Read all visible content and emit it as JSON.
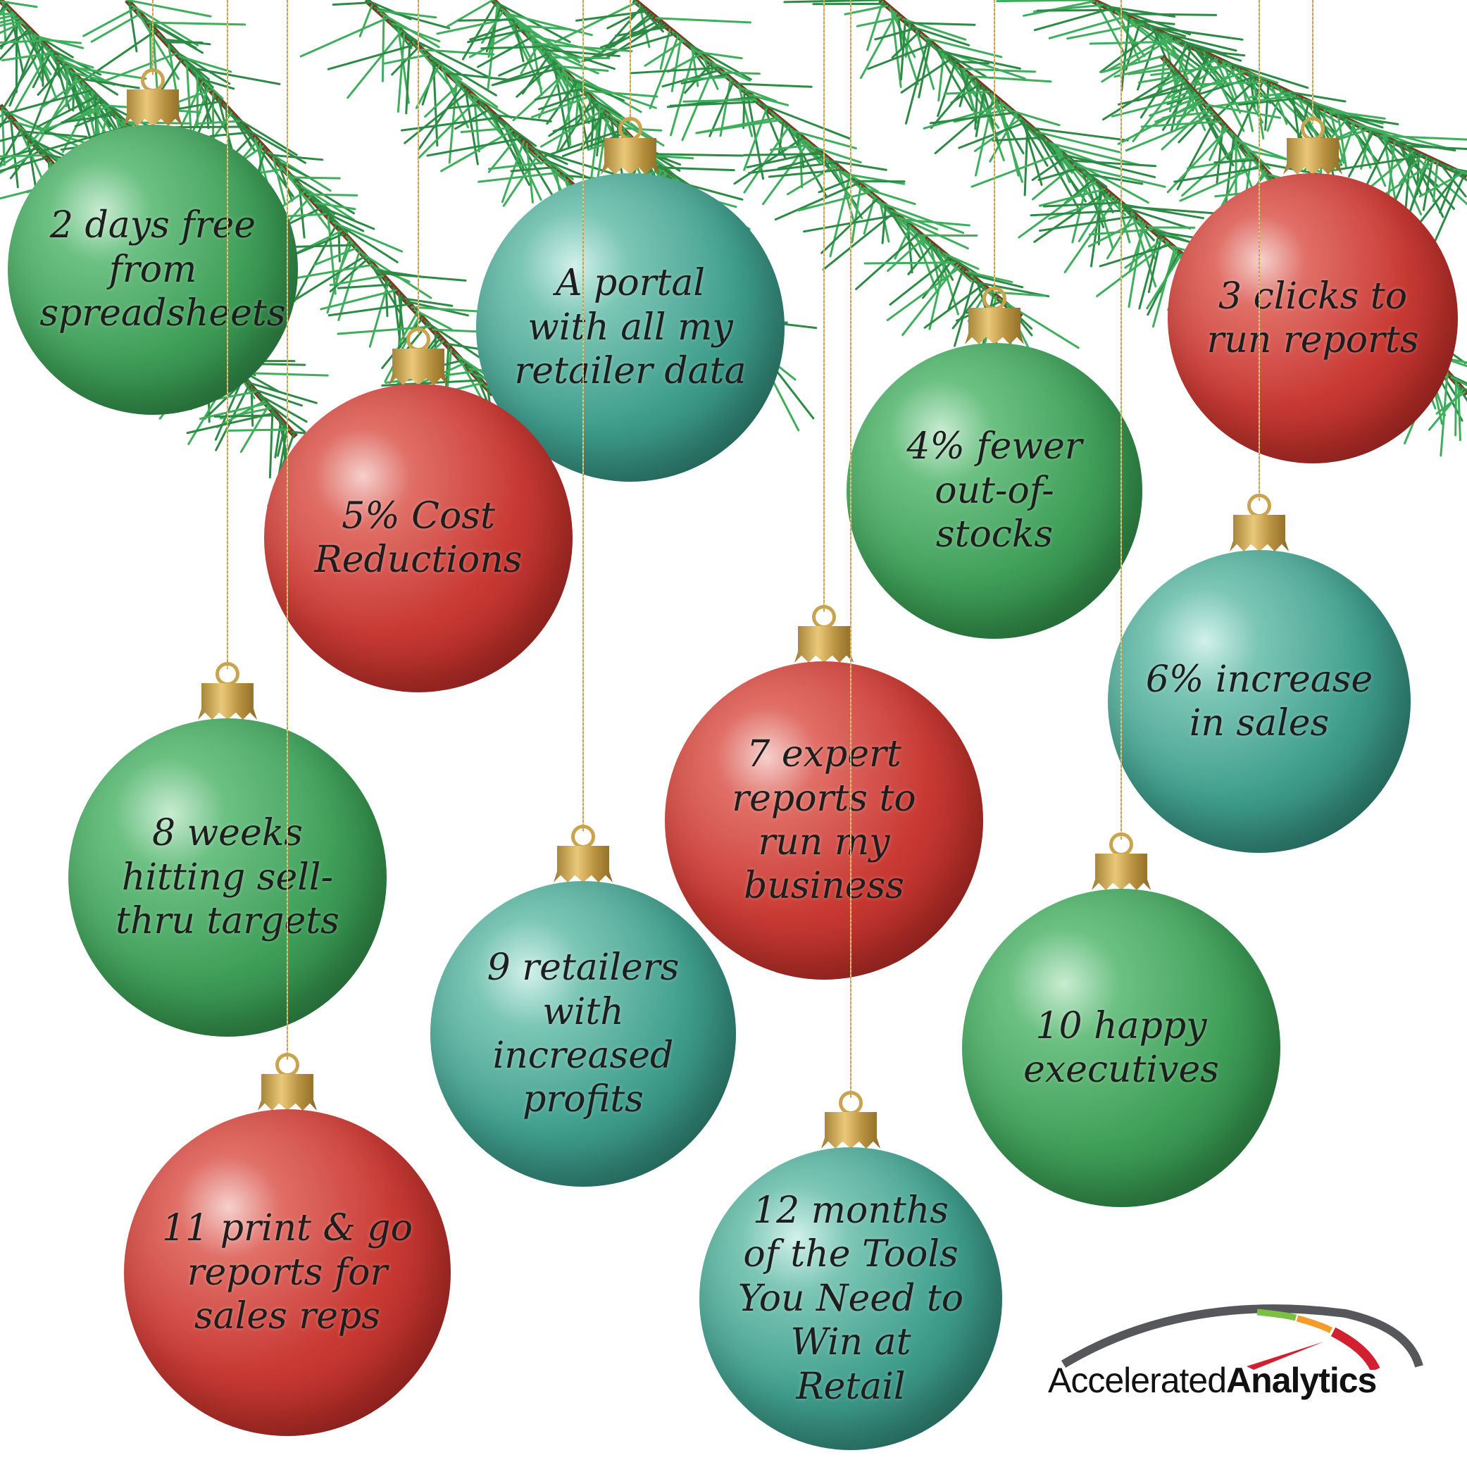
{
  "ornaments": [
    {
      "text": "2 days free from spreadsheets",
      "color": "green"
    },
    {
      "text": "A portal with all my retailer data",
      "color": "teal"
    },
    {
      "text": "3 clicks to run reports",
      "color": "red"
    },
    {
      "text": "4% fewer out-of-stocks",
      "color": "green"
    },
    {
      "text": "5% Cost Reductions",
      "color": "red"
    },
    {
      "text": "6% increase in sales",
      "color": "teal"
    },
    {
      "text": "7 expert reports to run my business",
      "color": "red"
    },
    {
      "text": "8 weeks hitting sell-thru targets",
      "color": "green"
    },
    {
      "text": "9 retailers with increased profits",
      "color": "teal"
    },
    {
      "text": "10 happy executives",
      "color": "green"
    },
    {
      "text": "11 print & go reports for sales reps",
      "color": "red"
    },
    {
      "text": "12 months of the Tools You Need to Win at Retail",
      "color": "teal"
    }
  ],
  "logo": {
    "light": "Accelerated",
    "bold": "Analytics",
    "colors": {
      "arc": "#55575a",
      "green": "#7bc043",
      "orange": "#f39c2b",
      "red": "#d1202f"
    }
  },
  "colors": {
    "pine": "#3fae5c",
    "branch": "#7a3a22",
    "gold": "#c9a34e"
  }
}
